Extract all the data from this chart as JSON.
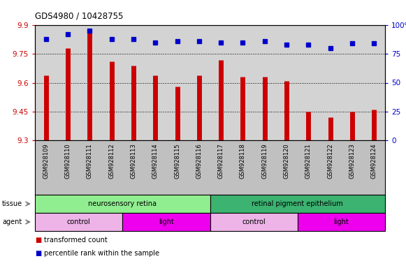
{
  "title": "GDS4980 / 10428755",
  "samples": [
    "GSM928109",
    "GSM928110",
    "GSM928111",
    "GSM928112",
    "GSM928113",
    "GSM928114",
    "GSM928115",
    "GSM928116",
    "GSM928117",
    "GSM928118",
    "GSM928119",
    "GSM928120",
    "GSM928121",
    "GSM928122",
    "GSM928123",
    "GSM928124"
  ],
  "red_values": [
    9.64,
    9.78,
    9.87,
    9.71,
    9.69,
    9.64,
    9.58,
    9.64,
    9.72,
    9.63,
    9.63,
    9.61,
    9.45,
    9.42,
    9.45,
    9.46
  ],
  "blue_values": [
    88,
    92,
    95,
    88,
    88,
    85,
    86,
    86,
    85,
    85,
    86,
    83,
    83,
    80,
    84,
    84
  ],
  "ylim_left": [
    9.3,
    9.9
  ],
  "ylim_right": [
    0,
    100
  ],
  "yticks_left": [
    9.3,
    9.45,
    9.6,
    9.75,
    9.9
  ],
  "yticks_right": [
    0,
    25,
    50,
    75,
    100
  ],
  "tissue_groups": [
    {
      "label": "neurosensory retina",
      "start": 0,
      "end": 8,
      "color": "#90EE90"
    },
    {
      "label": "retinal pigment epithelium",
      "start": 8,
      "end": 16,
      "color": "#3CB371"
    }
  ],
  "agent_groups": [
    {
      "label": "control",
      "start": 0,
      "end": 4,
      "color": "#EEB4E8"
    },
    {
      "label": "light",
      "start": 4,
      "end": 8,
      "color": "#EE00EE"
    },
    {
      "label": "control",
      "start": 8,
      "end": 12,
      "color": "#EEB4E8"
    },
    {
      "label": "light",
      "start": 12,
      "end": 16,
      "color": "#EE00EE"
    }
  ],
  "bar_color": "#CC0000",
  "dot_color": "#0000CC",
  "background_color": "#D3D3D3",
  "left_axis_color": "#CC0000",
  "right_axis_color": "#0000CC",
  "label_row_color": "#C0C0C0"
}
